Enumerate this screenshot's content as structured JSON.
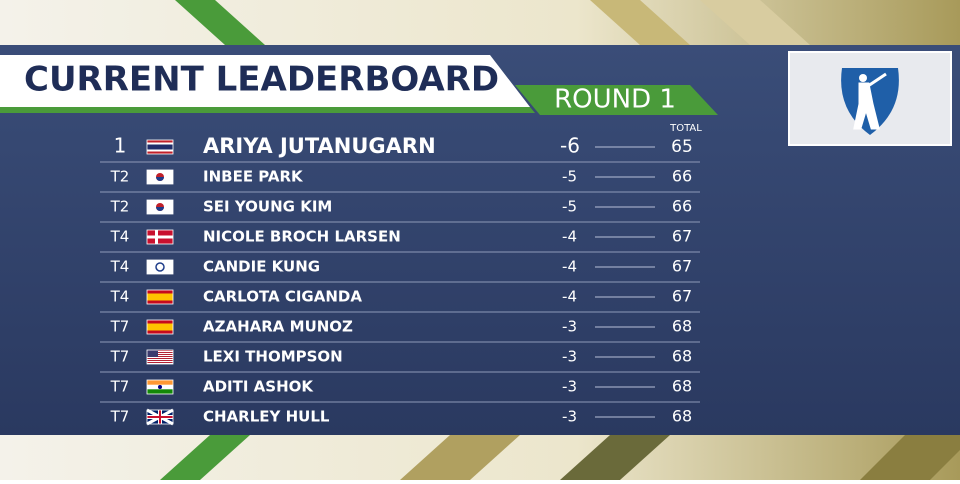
{
  "header": {
    "title": "CURRENT LEADERBOARD",
    "round": "ROUND 1"
  },
  "table": {
    "total_header": "TOTAL",
    "rows": [
      [
        "1",
        "ARIYA JUTANUGARN",
        "-6",
        65
      ],
      [
        "T2",
        "INBEE PARK",
        "-5",
        66
      ],
      [
        "T2",
        "SEI YOUNG KIM",
        "-5",
        66
      ],
      [
        "T4",
        "NICOLE BROCH LARSEN",
        "-4",
        67
      ],
      [
        "T4",
        "CANDIE KUNG",
        "-4",
        67
      ],
      [
        "T4",
        "CARLOTA CIGANDA",
        "-4",
        67
      ],
      [
        "T7",
        "AZAHARA MUNOZ",
        "-3",
        68
      ],
      [
        "T7",
        "LEXI THOMPSON",
        "-3",
        68
      ],
      [
        "T7",
        "ADITI ASHOK",
        "-3",
        68
      ],
      [
        "T7",
        "CHARLEY HULL",
        "-3",
        68
      ]
    ]
  }
}
